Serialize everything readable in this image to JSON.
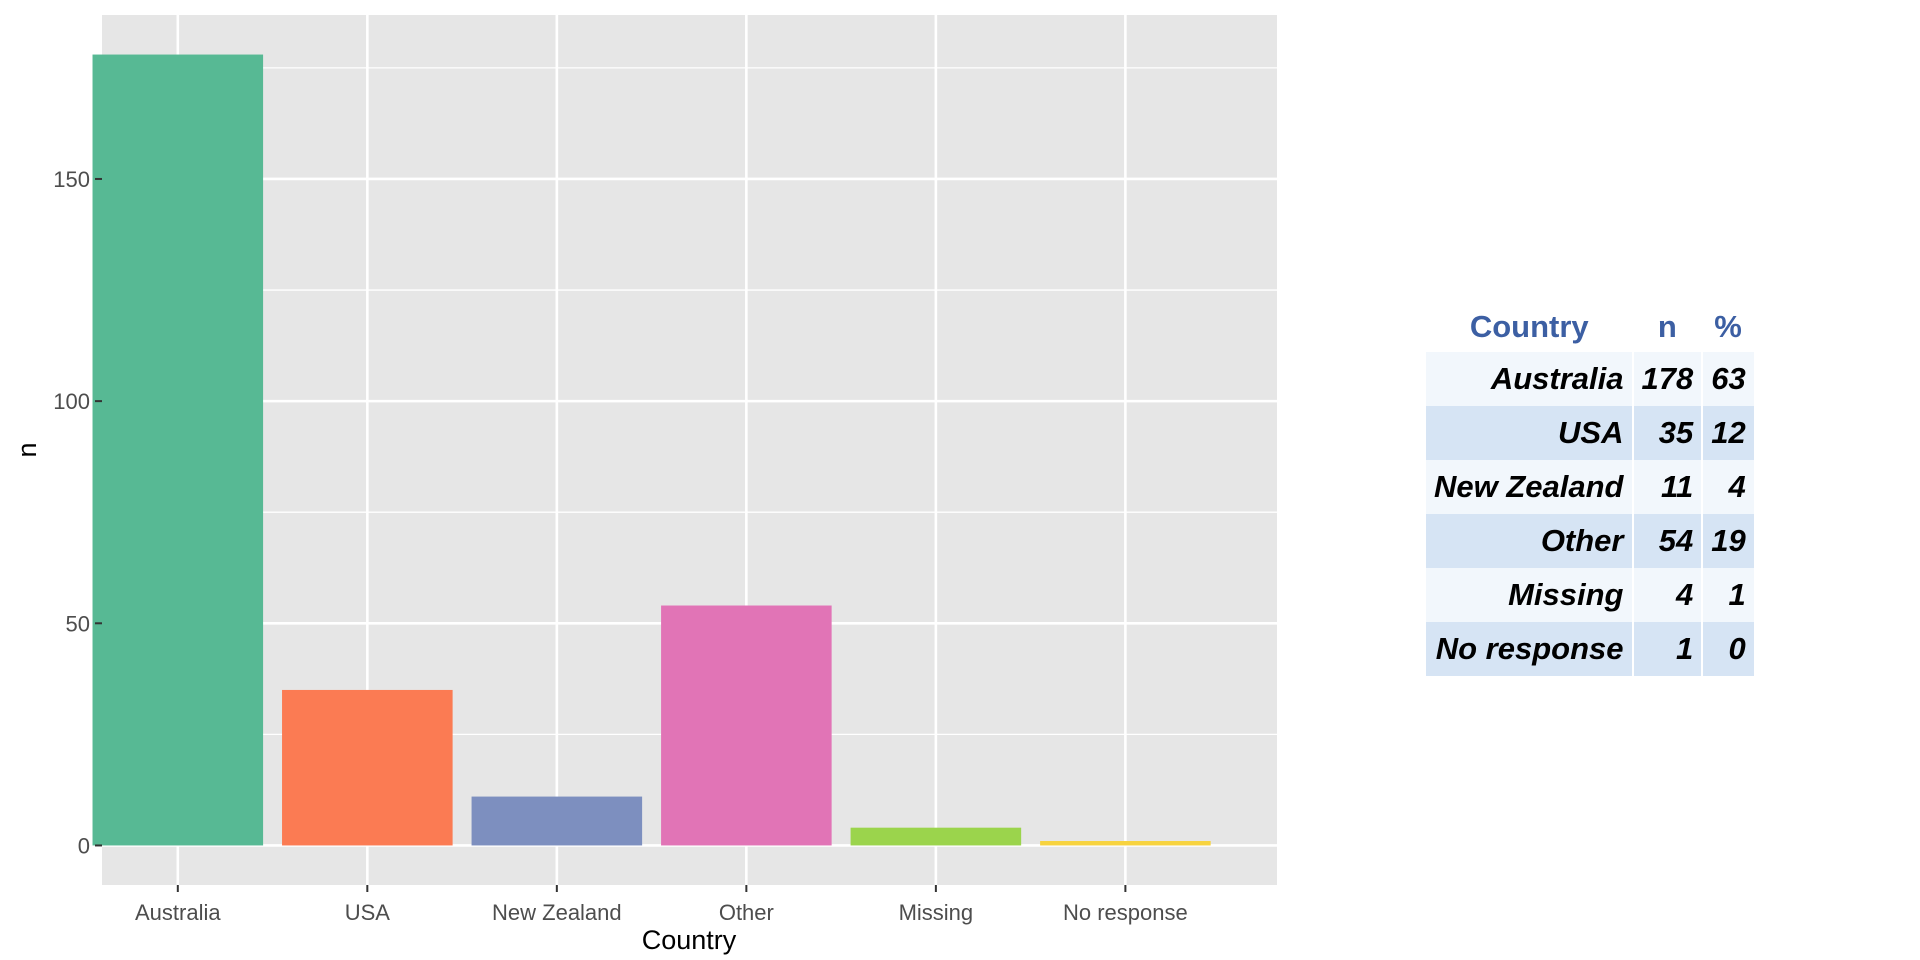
{
  "chart_data": {
    "type": "bar",
    "categories": [
      "Australia",
      "USA",
      "New Zealand",
      "Other",
      "Missing",
      "No response"
    ],
    "values": [
      178,
      35,
      11,
      54,
      4,
      1
    ],
    "colors": [
      "#57b994",
      "#fb7b53",
      "#7d8fbf",
      "#e174b6",
      "#9bd44c",
      "#f7d33f"
    ],
    "xlabel": "Country",
    "ylabel": "n",
    "ylim": [
      -8.9,
      186.9
    ],
    "yticks": [
      0,
      50,
      100,
      150
    ],
    "grid": true
  },
  "table": {
    "headers": [
      "Country",
      "n",
      "%"
    ],
    "rows": [
      [
        "Australia",
        "178",
        "63"
      ],
      [
        "USA",
        "35",
        "12"
      ],
      [
        "New Zealand",
        "11",
        "4"
      ],
      [
        "Other",
        "54",
        "19"
      ],
      [
        "Missing",
        "4",
        "1"
      ],
      [
        "No response",
        "1",
        "0"
      ]
    ],
    "header_color": "#3c5fa3",
    "row_colors": [
      "#f2f7fc",
      "#d6e4f4"
    ]
  }
}
